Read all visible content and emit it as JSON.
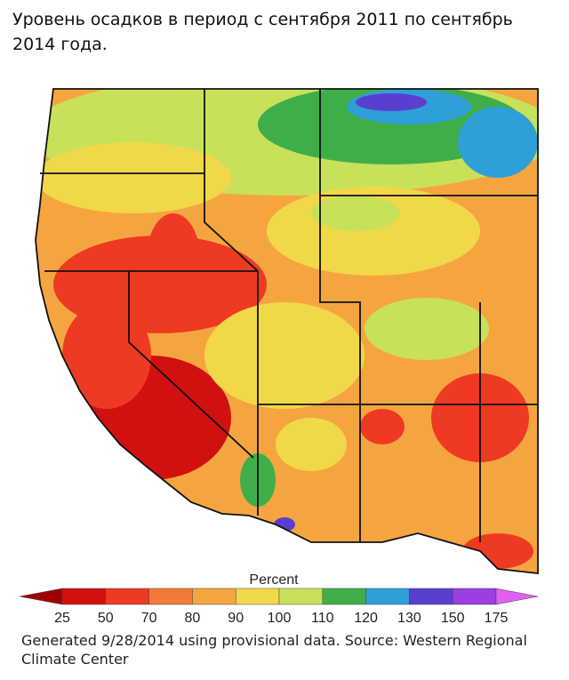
{
  "title": "Уровень осадков в период с сентября 2011 по сентябрь 2014 года.",
  "legend": {
    "title": "Percent",
    "ticks": [
      25,
      50,
      70,
      80,
      90,
      100,
      110,
      120,
      130,
      150,
      175
    ],
    "colors": [
      "#9e0000",
      "#d11010",
      "#ee3a22",
      "#f37a36",
      "#f5a540",
      "#f1d849",
      "#c8e15a",
      "#3fae49",
      "#2f9fd8",
      "#5a3fcf",
      "#9b3fe0",
      "#e060f0"
    ]
  },
  "source": "Generated 9/28/2014 using provisional data. Source: Western Regional Climate Center"
}
